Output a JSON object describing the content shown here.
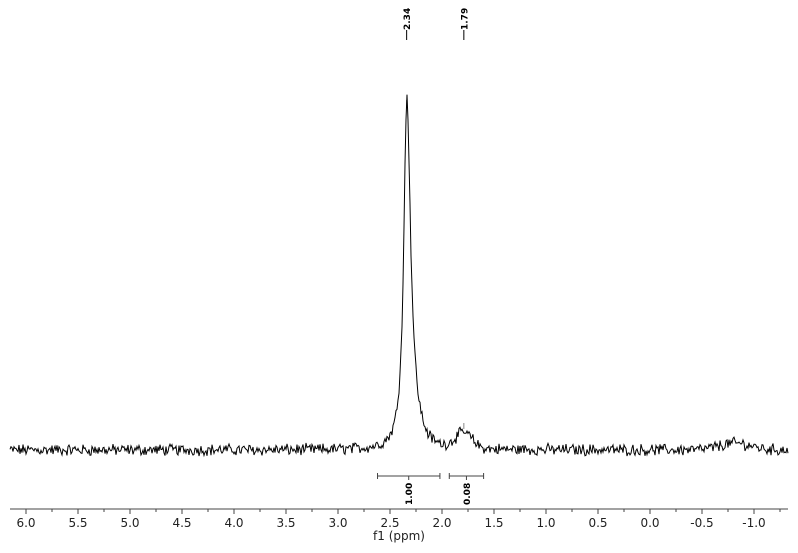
{
  "chart_data": {
    "type": "line",
    "title": "",
    "xlabel": "f1 (ppm)",
    "ylabel": "",
    "xlim": [
      6.15,
      -1.33
    ],
    "x_reversed": true,
    "grid": false,
    "x_ticks": [
      "6.0",
      "5.5",
      "5.0",
      "4.5",
      "4.0",
      "3.5",
      "3.0",
      "2.5",
      "2.0",
      "1.5",
      "1.0",
      "0.5",
      "0.0",
      "-0.5",
      "-1.0"
    ],
    "x_tick_values": [
      6.0,
      5.5,
      5.0,
      4.5,
      4.0,
      3.5,
      3.0,
      2.5,
      2.0,
      1.5,
      1.0,
      0.5,
      0.0,
      -0.5,
      -1.0
    ],
    "peaks": [
      {
        "ppm": 2.34,
        "label": "2.34",
        "relative_intensity": 1.0
      },
      {
        "ppm": 1.79,
        "label": "1.79",
        "relative_intensity": 0.05
      }
    ],
    "integrals": [
      {
        "from": 2.62,
        "to": 2.02,
        "value": "1.00"
      },
      {
        "from": 1.93,
        "to": 1.6,
        "value": "0.08"
      }
    ],
    "line_color": "#000000"
  }
}
